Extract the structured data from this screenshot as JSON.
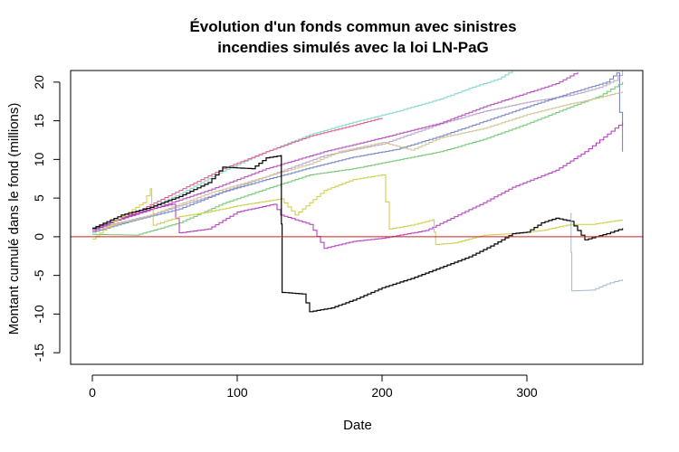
{
  "chart_data": {
    "type": "line",
    "title_line1": "Évolution d'un fonds commun avec sinistres",
    "title_line2": "incendies simulés avec la loi LN-PaG",
    "xlabel": "Date",
    "ylabel": "Montant cumulé dans le fond (millions)",
    "xlim": [
      -15,
      380
    ],
    "ylim": [
      -16.5,
      21.5
    ],
    "x_ticks": [
      0,
      100,
      200,
      300
    ],
    "y_ticks": [
      -15,
      -10,
      -5,
      0,
      5,
      10,
      15,
      20
    ],
    "reference_line": {
      "y": 0,
      "color": "#cc2222"
    },
    "line_style": "step",
    "series": [
      {
        "color": "#7fd6c8",
        "points": [
          [
            0,
            1.2
          ],
          [
            30,
            3.0
          ],
          [
            60,
            5.5
          ],
          [
            90,
            8.5
          ],
          [
            120,
            11
          ],
          [
            150,
            13.2
          ],
          [
            180,
            14.8
          ],
          [
            210,
            16.2
          ],
          [
            240,
            17.8
          ],
          [
            260,
            19.2
          ],
          [
            280,
            20.4
          ],
          [
            290,
            21.5
          ]
        ]
      },
      {
        "color": "#b8a0c8",
        "points": [
          [
            0,
            1.0
          ],
          [
            40,
            2.8
          ],
          [
            80,
            5.2
          ],
          [
            120,
            7.8
          ],
          [
            160,
            10.5
          ],
          [
            200,
            12.0
          ],
          [
            240,
            14.6
          ],
          [
            270,
            16.2
          ],
          [
            300,
            17.4
          ],
          [
            330,
            18.3
          ],
          [
            350,
            19.3
          ],
          [
            360,
            20.2
          ],
          [
            366,
            21.5
          ]
        ]
      },
      {
        "color": "#e0558a",
        "points": [
          [
            0,
            1.0
          ],
          [
            30,
            3.2
          ],
          [
            60,
            6.0
          ],
          [
            90,
            8.8
          ],
          [
            120,
            11.0
          ],
          [
            150,
            13.0
          ],
          [
            180,
            14.4
          ],
          [
            200,
            15.4
          ]
        ]
      },
      {
        "color": "#b040b8",
        "points": [
          [
            0,
            1.1
          ],
          [
            40,
            3.5
          ],
          [
            80,
            6.0
          ],
          [
            120,
            8.8
          ],
          [
            160,
            11.0
          ],
          [
            200,
            12.8
          ],
          [
            240,
            14.7
          ],
          [
            270,
            16.8
          ],
          [
            300,
            18.6
          ],
          [
            320,
            19.8
          ],
          [
            335,
            21.3
          ]
        ]
      },
      {
        "color": "#6a7fc4",
        "points": [
          [
            0,
            0.6
          ],
          [
            30,
            2.2
          ],
          [
            60,
            3.6
          ],
          [
            90,
            5.8
          ],
          [
            120,
            7.4
          ],
          [
            150,
            8.9
          ],
          [
            180,
            10.3
          ],
          [
            210,
            11.3
          ],
          [
            240,
            13.0
          ],
          [
            270,
            14.9
          ],
          [
            300,
            16.8
          ],
          [
            330,
            18.6
          ],
          [
            355,
            20.0
          ],
          [
            362,
            21.2
          ],
          [
            366,
            11.0
          ]
        ]
      },
      {
        "color": "#6cc56c",
        "points": [
          [
            0,
            0.3
          ],
          [
            30,
            0.2
          ],
          [
            60,
            1.8
          ],
          [
            90,
            4.3
          ],
          [
            120,
            6.2
          ],
          [
            150,
            8.0
          ],
          [
            180,
            8.8
          ],
          [
            210,
            9.9
          ],
          [
            240,
            11.0
          ],
          [
            270,
            12.6
          ],
          [
            300,
            14.6
          ],
          [
            330,
            16.8
          ],
          [
            350,
            18.2
          ],
          [
            366,
            20.0
          ]
        ]
      },
      {
        "color": "#cfc090",
        "points": [
          [
            0,
            0.8
          ],
          [
            40,
            2.8
          ],
          [
            80,
            5.6
          ],
          [
            120,
            7.8
          ],
          [
            150,
            9.4
          ],
          [
            170,
            11.0
          ],
          [
            200,
            12.2
          ],
          [
            220,
            11.2
          ],
          [
            240,
            12.8
          ],
          [
            270,
            14.0
          ],
          [
            300,
            15.8
          ],
          [
            330,
            17.2
          ],
          [
            350,
            18.0
          ],
          [
            366,
            18.8
          ]
        ]
      },
      {
        "color": "#b030c0",
        "points": [
          [
            0,
            0.8
          ],
          [
            20,
            2.4
          ],
          [
            40,
            3.6
          ],
          [
            55,
            4.2
          ],
          [
            60,
            0.5
          ],
          [
            80,
            1.0
          ],
          [
            100,
            3.2
          ],
          [
            125,
            4.2
          ],
          [
            130,
            2.8
          ],
          [
            150,
            1.6
          ],
          [
            160,
            -1.5
          ],
          [
            180,
            -0.6
          ],
          [
            200,
            -0.2
          ],
          [
            230,
            0.8
          ],
          [
            250,
            2.6
          ],
          [
            270,
            4.4
          ],
          [
            290,
            6.4
          ],
          [
            320,
            8.6
          ],
          [
            340,
            11.0
          ],
          [
            366,
            14.8
          ]
        ]
      },
      {
        "color": "#cccc40",
        "points": [
          [
            0,
            -0.3
          ],
          [
            15,
            2.0
          ],
          [
            35,
            4.4
          ],
          [
            40,
            6.2
          ],
          [
            42,
            1.5
          ],
          [
            60,
            2.6
          ],
          [
            80,
            3.2
          ],
          [
            100,
            4.0
          ],
          [
            130,
            4.9
          ],
          [
            140,
            2.8
          ],
          [
            150,
            4.4
          ],
          [
            160,
            6.0
          ],
          [
            180,
            7.4
          ],
          [
            200,
            8.0
          ],
          [
            205,
            1.0
          ],
          [
            220,
            1.5
          ],
          [
            235,
            2.2
          ],
          [
            237,
            -1.0
          ],
          [
            250,
            -0.8
          ],
          [
            270,
            0.2
          ],
          [
            290,
            0.4
          ],
          [
            310,
            0.8
          ],
          [
            330,
            1.6
          ],
          [
            345,
            1.6
          ],
          [
            366,
            2.2
          ]
        ]
      },
      {
        "color": "#000000",
        "points": [
          [
            0,
            1.1
          ],
          [
            20,
            2.8
          ],
          [
            40,
            3.8
          ],
          [
            60,
            5.2
          ],
          [
            80,
            7.0
          ],
          [
            90,
            9.0
          ],
          [
            110,
            8.8
          ],
          [
            120,
            10.2
          ],
          [
            130,
            10.5
          ],
          [
            131,
            -7.2
          ],
          [
            145,
            -7.4
          ],
          [
            150,
            -9.7
          ],
          [
            165,
            -9.2
          ],
          [
            180,
            -8.2
          ],
          [
            200,
            -6.6
          ],
          [
            220,
            -5.4
          ],
          [
            240,
            -4.0
          ],
          [
            260,
            -2.6
          ],
          [
            275,
            -1.2
          ],
          [
            290,
            0.4
          ],
          [
            300,
            0.6
          ],
          [
            310,
            1.8
          ],
          [
            320,
            2.4
          ],
          [
            330,
            2.0
          ],
          [
            340,
            -0.4
          ],
          [
            355,
            0.4
          ],
          [
            366,
            1.1
          ]
        ]
      },
      {
        "color": "#aab8cc",
        "points": [
          [
            330,
            3.0
          ],
          [
            331,
            -7.0
          ],
          [
            345,
            -6.9
          ],
          [
            355,
            -6.1
          ],
          [
            366,
            -5.5
          ]
        ]
      }
    ]
  }
}
